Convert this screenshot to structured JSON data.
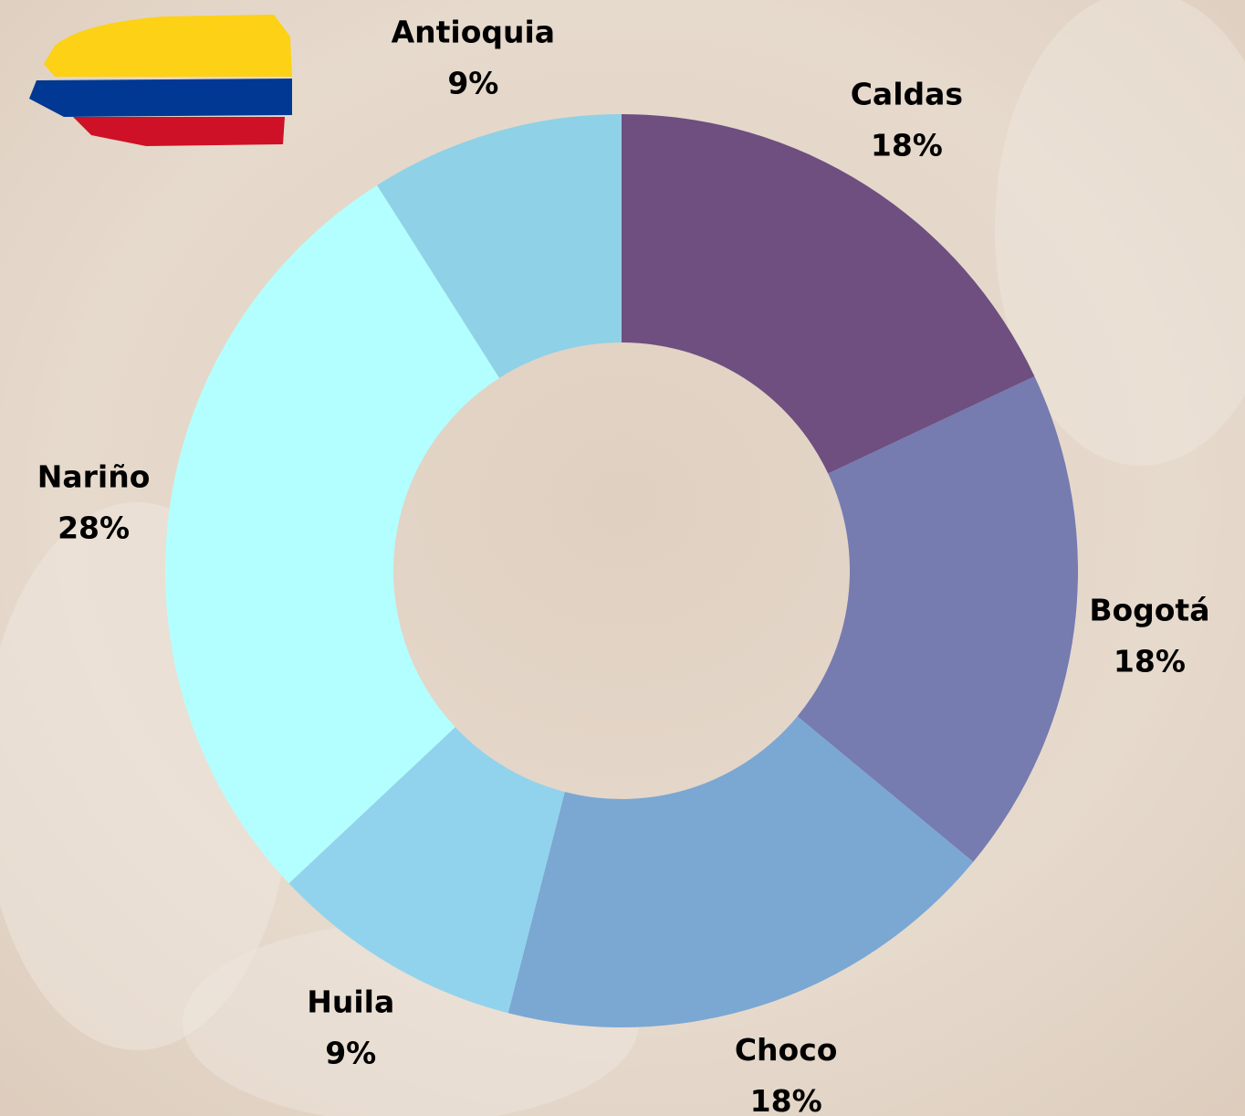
{
  "chart_data": {
    "type": "donut",
    "categories": [
      "Caldas",
      "Bogotá",
      "Choco",
      "Huila",
      "Nariño",
      "Antioquia"
    ],
    "values": [
      18,
      18,
      18,
      9,
      28,
      9
    ],
    "value_labels": [
      "18%",
      "18%",
      "18%",
      "9%",
      "28%",
      "9%"
    ],
    "colors": [
      "#6e4f80",
      "#767bb0",
      "#7ba7d3",
      "#91d3ec",
      "#b3ffff",
      "#8fd1e6"
    ]
  }
}
